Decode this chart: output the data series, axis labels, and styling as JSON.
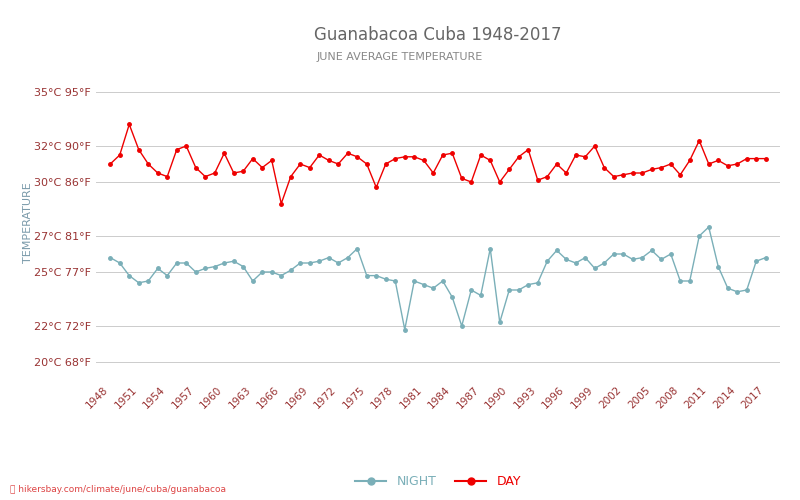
{
  "title": "Guanabacoa Cuba 1948-2017",
  "subtitle": "JUNE AVERAGE TEMPERATURE",
  "ylabel": "TEMPERATURE",
  "footer": "hikersbay.com/climate/june/cuba/guanabacoa",
  "years": [
    1948,
    1949,
    1950,
    1951,
    1952,
    1953,
    1954,
    1955,
    1956,
    1957,
    1958,
    1959,
    1960,
    1961,
    1962,
    1963,
    1964,
    1965,
    1966,
    1967,
    1968,
    1969,
    1970,
    1971,
    1972,
    1973,
    1974,
    1975,
    1976,
    1977,
    1978,
    1979,
    1980,
    1981,
    1982,
    1983,
    1984,
    1985,
    1986,
    1987,
    1988,
    1989,
    1990,
    1991,
    1992,
    1993,
    1994,
    1995,
    1996,
    1997,
    1998,
    1999,
    2000,
    2001,
    2002,
    2003,
    2004,
    2005,
    2006,
    2007,
    2008,
    2009,
    2010,
    2011,
    2012,
    2013,
    2014,
    2015,
    2016,
    2017
  ],
  "day_temps": [
    31.0,
    31.5,
    33.2,
    31.8,
    31.0,
    30.5,
    30.3,
    31.8,
    32.0,
    30.8,
    30.3,
    30.5,
    31.6,
    30.5,
    30.6,
    31.3,
    30.8,
    31.2,
    28.8,
    30.3,
    31.0,
    30.8,
    31.5,
    31.2,
    31.0,
    31.6,
    31.4,
    31.0,
    29.7,
    31.0,
    31.3,
    31.4,
    31.4,
    31.2,
    30.5,
    31.5,
    31.6,
    30.2,
    30.0,
    31.5,
    31.2,
    30.0,
    30.7,
    31.4,
    31.8,
    30.1,
    30.3,
    31.0,
    30.5,
    31.5,
    31.4,
    32.0,
    30.8,
    30.3,
    30.4,
    30.5,
    30.5,
    30.7,
    30.8,
    31.0,
    30.4,
    31.2,
    32.3,
    31.0,
    31.2,
    30.9,
    31.0,
    31.3,
    31.3,
    31.3
  ],
  "night_temps": [
    25.8,
    25.5,
    24.8,
    24.4,
    24.5,
    25.2,
    24.8,
    25.5,
    25.5,
    25.0,
    25.2,
    25.3,
    25.5,
    25.6,
    25.3,
    24.5,
    25.0,
    25.0,
    24.8,
    25.1,
    25.5,
    25.5,
    25.6,
    25.8,
    25.5,
    25.8,
    26.3,
    24.8,
    24.8,
    24.6,
    24.5,
    21.8,
    24.5,
    24.3,
    24.1,
    24.5,
    23.6,
    22.0,
    24.0,
    23.7,
    26.3,
    22.2,
    24.0,
    24.0,
    24.3,
    24.4,
    25.6,
    26.2,
    25.7,
    25.5,
    25.8,
    25.2,
    25.5,
    26.0,
    26.0,
    25.7,
    25.8,
    26.2,
    25.7,
    26.0,
    24.5,
    24.5,
    27.0,
    27.5,
    25.3,
    24.1,
    23.9,
    24.0,
    25.6,
    25.8
  ],
  "day_color": "#ee0000",
  "night_color": "#7aafb8",
  "bg_color": "#ffffff",
  "grid_color": "#cccccc",
  "yticks_c": [
    20,
    22,
    25,
    27,
    30,
    32,
    35
  ],
  "yticks_f": [
    68,
    72,
    77,
    81,
    86,
    90,
    95
  ],
  "ylim": [
    19.0,
    36.5
  ],
  "title_color": "#666666",
  "subtitle_color": "#888888",
  "tick_label_color": "#993333",
  "ylabel_color": "#7a9aaa",
  "legend_night": "NIGHT",
  "legend_day": "DAY",
  "figwidth": 8.0,
  "figheight": 5.0,
  "dpi": 100
}
